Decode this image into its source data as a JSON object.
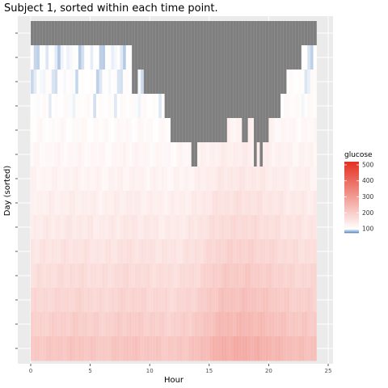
{
  "chart_data": {
    "type": "heatmap",
    "title": "Subject 1, sorted within each time point.",
    "xlabel": "Hour",
    "ylabel": "Day (sorted)",
    "xlim": [
      0,
      24
    ],
    "x_ticks": [
      0,
      5,
      10,
      15,
      20,
      25
    ],
    "rows": 14,
    "slot_hours": 0.25,
    "missing_color": "#7f7f7f",
    "panel_background": "#ebebeb",
    "colors": {
      "low": "#4a7dbf",
      "mid": "#ffffff",
      "high": "#e43121"
    },
    "color_mid_value": 100,
    "legend": {
      "title": "glucose",
      "min": 75,
      "max": 520,
      "ticks": [
        100,
        200,
        300,
        400,
        500
      ],
      "position": "right"
    },
    "missing_rows_by_hour": [
      {
        "from": 0,
        "to": 8.5,
        "missing_rows": 1
      },
      {
        "from": 8.5,
        "to": 9.0,
        "missing_rows": 3
      },
      {
        "from": 9.0,
        "to": 9.5,
        "missing_rows": 2
      },
      {
        "from": 9.5,
        "to": 11.25,
        "missing_rows": 3
      },
      {
        "from": 11.25,
        "to": 11.75,
        "missing_rows": 4
      },
      {
        "from": 11.75,
        "to": 13.5,
        "missing_rows": 5
      },
      {
        "from": 13.5,
        "to": 14.0,
        "missing_rows": 6
      },
      {
        "from": 14.0,
        "to": 14.75,
        "missing_rows": 5
      },
      {
        "from": 14.75,
        "to": 15.25,
        "missing_rows": 5
      },
      {
        "from": 15.25,
        "to": 16.5,
        "missing_rows": 5
      },
      {
        "from": 16.5,
        "to": 17.75,
        "missing_rows": 4
      },
      {
        "from": 17.75,
        "to": 18.25,
        "missing_rows": 5
      },
      {
        "from": 18.25,
        "to": 18.75,
        "missing_rows": 4
      },
      {
        "from": 18.75,
        "to": 19.0,
        "missing_rows": 6
      },
      {
        "from": 19.0,
        "to": 19.25,
        "missing_rows": 5
      },
      {
        "from": 19.25,
        "to": 19.5,
        "missing_rows": 6
      },
      {
        "from": 19.5,
        "to": 20.0,
        "missing_rows": 5
      },
      {
        "from": 20.0,
        "to": 21.0,
        "missing_rows": 4
      },
      {
        "from": 21.0,
        "to": 21.5,
        "missing_rows": 3
      },
      {
        "from": 21.5,
        "to": 22.75,
        "missing_rows": 2
      },
      {
        "from": 22.75,
        "to": 24,
        "missing_rows": 1
      }
    ],
    "row_glucose_levels": [
      95,
      98,
      100,
      103,
      108,
      114,
      121,
      130,
      140,
      152,
      165,
      178,
      192,
      210
    ],
    "hour_glucose_offsets": [
      {
        "hour": 0,
        "offset": 0
      },
      {
        "hour": 2.5,
        "offset": 8
      },
      {
        "hour": 4,
        "offset": 12
      },
      {
        "hour": 6,
        "offset": 0
      },
      {
        "hour": 8,
        "offset": 15
      },
      {
        "hour": 10,
        "offset": 8
      },
      {
        "hour": 12,
        "offset": 0
      },
      {
        "hour": 14,
        "offset": 18
      },
      {
        "hour": 16,
        "offset": 55
      },
      {
        "hour": 18,
        "offset": 60
      },
      {
        "hour": 20,
        "offset": 45
      },
      {
        "hour": 22,
        "offset": 25
      },
      {
        "hour": 24,
        "offset": 20
      }
    ]
  }
}
